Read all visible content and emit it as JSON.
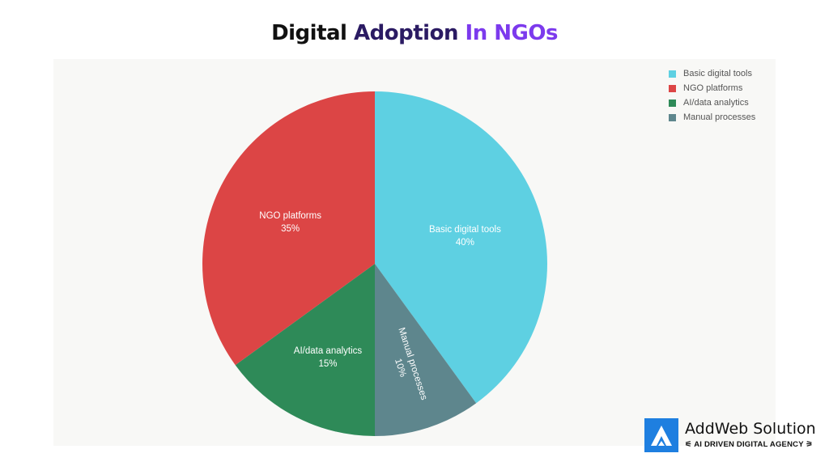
{
  "title": {
    "part1": "Digital",
    "part2": "Adoption",
    "part3": "In NGOs"
  },
  "chart_data": {
    "type": "pie",
    "title": "Digital Adoption In NGOs",
    "categories": [
      "Basic digital tools",
      "Manual processes",
      "AI/data analytics",
      "NGO platforms"
    ],
    "values": [
      40,
      10,
      15,
      35
    ],
    "labels": [
      "40%",
      "10%",
      "15%",
      "35%"
    ],
    "colors": [
      "#5ed0e2",
      "#5e868d",
      "#2e8a58",
      "#dc4545"
    ],
    "start": "top",
    "direction": "clockwise",
    "legend": {
      "placement": "top-right",
      "entries": [
        "Basic digital tools",
        "NGO platforms",
        "AI/data analytics",
        "Manual processes"
      ],
      "colors": [
        "#5ed0e2",
        "#dc4545",
        "#2e8a58",
        "#5e868d"
      ]
    }
  },
  "logo": {
    "name": "AddWeb Solution",
    "tagline": "AI DRIVEN DIGITAL AGENCY"
  }
}
